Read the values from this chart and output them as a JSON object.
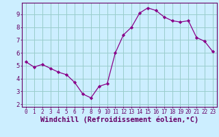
{
  "x": [
    0,
    1,
    2,
    3,
    4,
    5,
    6,
    7,
    8,
    9,
    10,
    11,
    12,
    13,
    14,
    15,
    16,
    17,
    18,
    19,
    20,
    21,
    22,
    23
  ],
  "y": [
    5.3,
    4.9,
    5.1,
    4.8,
    4.5,
    4.3,
    3.7,
    2.8,
    2.5,
    3.4,
    3.6,
    6.0,
    7.4,
    8.0,
    9.1,
    9.5,
    9.3,
    8.8,
    8.5,
    8.4,
    8.5,
    7.2,
    6.9,
    6.1
  ],
  "line_color": "#880088",
  "marker": "D",
  "marker_size": 2.2,
  "bg_color": "#cceeff",
  "grid_color": "#99cccc",
  "axis_color": "#660066",
  "xlabel": "Windchill (Refroidissement éolien,°C)",
  "xlabel_fontsize": 7.5,
  "ylabel_ticks": [
    2,
    3,
    4,
    5,
    6,
    7,
    8,
    9
  ],
  "xlim": [
    -0.5,
    23.5
  ],
  "ylim": [
    1.8,
    9.9
  ],
  "xtick_labels": [
    "0",
    "1",
    "2",
    "3",
    "4",
    "5",
    "6",
    "7",
    "8",
    "9",
    "10",
    "11",
    "12",
    "13",
    "14",
    "15",
    "16",
    "17",
    "18",
    "19",
    "20",
    "21",
    "22",
    "23"
  ],
  "tick_fontsize": 5.5,
  "ytick_fontsize": 6.5
}
